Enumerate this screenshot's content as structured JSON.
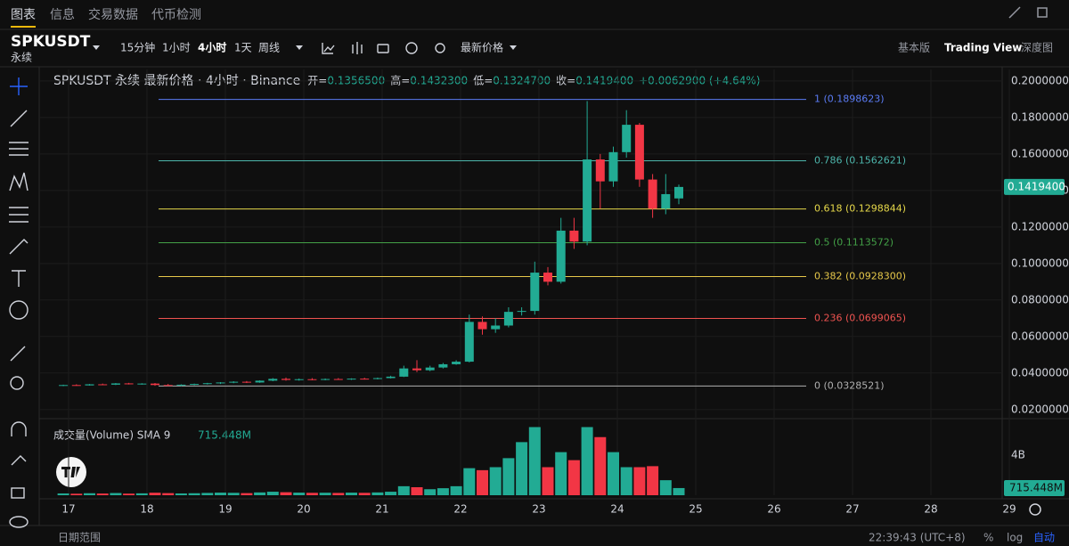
{
  "tabs": [
    "图表",
    "信息",
    "交易数据",
    "代币检测"
  ],
  "symbol": "SPKUSDT",
  "contract": "永续",
  "intervals": [
    "15分钟",
    "1小时",
    "4小时",
    "1天",
    "周线"
  ],
  "price_type": "最新价格",
  "views": [
    "基本版",
    "Trading View",
    "深度图"
  ],
  "legend": {
    "title": "SPKUSDT 永续 最新价格 · 4小时 · Binance",
    "items": [
      {
        "label": "开=",
        "value": "0.1356500"
      },
      {
        "label": "高=",
        "value": "0.1432300"
      },
      {
        "label": "低=",
        "value": "0.1324700"
      },
      {
        "label": "收=",
        "value": "0.1419400"
      }
    ],
    "change": "+0.0062900 (+4.64%)"
  },
  "volume_title": "成交量(Volume) SMA 9",
  "footer": {
    "range": "日期范围",
    "time": "22:39:43 (UTC+8)",
    "pct": "%",
    "log": "log",
    "auto": "自动"
  },
  "chart_data": {
    "type": "candlestick",
    "up_color": "#22ab94",
    "down_color": "#f23645",
    "candles": [
      [
        0.033,
        0.0336,
        0.0328,
        0.0334
      ],
      [
        0.0334,
        0.0338,
        0.033,
        0.0332
      ],
      [
        0.0332,
        0.034,
        0.0331,
        0.0338
      ],
      [
        0.0338,
        0.0342,
        0.0334,
        0.0336
      ],
      [
        0.0336,
        0.0345,
        0.0334,
        0.0343
      ],
      [
        0.0343,
        0.0346,
        0.0337,
        0.034
      ],
      [
        0.034,
        0.0344,
        0.0336,
        0.0342
      ],
      [
        0.0342,
        0.0345,
        0.033,
        0.0334
      ],
      [
        0.0334,
        0.034,
        0.0328,
        0.0331
      ],
      [
        0.0331,
        0.0338,
        0.0328,
        0.0336
      ],
      [
        0.0336,
        0.0342,
        0.0333,
        0.034
      ],
      [
        0.034,
        0.0346,
        0.0337,
        0.0344
      ],
      [
        0.0344,
        0.035,
        0.034,
        0.0348
      ],
      [
        0.0348,
        0.0355,
        0.0344,
        0.0352
      ],
      [
        0.0352,
        0.0356,
        0.0345,
        0.0348
      ],
      [
        0.0348,
        0.036,
        0.0346,
        0.0358
      ],
      [
        0.0358,
        0.0372,
        0.0355,
        0.0368
      ],
      [
        0.0368,
        0.0375,
        0.0358,
        0.0362
      ],
      [
        0.0362,
        0.037,
        0.0358,
        0.0366
      ],
      [
        0.0366,
        0.0372,
        0.036,
        0.0364
      ],
      [
        0.0364,
        0.037,
        0.036,
        0.0367
      ],
      [
        0.0367,
        0.0372,
        0.0362,
        0.0365
      ],
      [
        0.0365,
        0.0371,
        0.0362,
        0.0369
      ],
      [
        0.0369,
        0.0374,
        0.0364,
        0.0367
      ],
      [
        0.0367,
        0.0375,
        0.0365,
        0.0372
      ],
      [
        0.0372,
        0.0385,
        0.037,
        0.038
      ],
      [
        0.038,
        0.044,
        0.0378,
        0.0425
      ],
      [
        0.0425,
        0.047,
        0.0405,
        0.0415
      ],
      [
        0.0415,
        0.044,
        0.041,
        0.043
      ],
      [
        0.043,
        0.0455,
        0.0425,
        0.0448
      ],
      [
        0.0448,
        0.047,
        0.0445,
        0.0462
      ],
      [
        0.0462,
        0.072,
        0.0458,
        0.068
      ],
      [
        0.068,
        0.071,
        0.061,
        0.064
      ],
      [
        0.064,
        0.07,
        0.062,
        0.066
      ],
      [
        0.066,
        0.076,
        0.065,
        0.0735
      ],
      [
        0.0735,
        0.076,
        0.0715,
        0.074
      ],
      [
        0.074,
        0.101,
        0.072,
        0.095
      ],
      [
        0.095,
        0.098,
        0.088,
        0.09
      ],
      [
        0.09,
        0.125,
        0.089,
        0.118
      ],
      [
        0.118,
        0.125,
        0.108,
        0.112
      ],
      [
        0.112,
        0.189,
        0.11,
        0.157
      ],
      [
        0.157,
        0.16,
        0.13,
        0.145
      ],
      [
        0.145,
        0.164,
        0.142,
        0.161
      ],
      [
        0.161,
        0.184,
        0.158,
        0.176
      ],
      [
        0.176,
        0.177,
        0.142,
        0.146
      ],
      [
        0.146,
        0.149,
        0.125,
        0.13
      ],
      [
        0.13,
        0.149,
        0.127,
        0.138
      ],
      [
        0.13565,
        0.14323,
        0.13247,
        0.14194
      ]
    ],
    "volumes": [
      180,
      150,
      200,
      170,
      220,
      160,
      190,
      250,
      210,
      180,
      200,
      230,
      260,
      240,
      210,
      280,
      350,
      300,
      260,
      240,
      250,
      230,
      260,
      240,
      280,
      350,
      900,
      800,
      600,
      700,
      900,
      2700,
      2500,
      2800,
      3700,
      5300,
      6800,
      2800,
      4300,
      3500,
      6800,
      5800,
      4300,
      2800,
      2800,
      2900,
      1500,
      715.448
    ],
    "ylim": [
      0.015,
      0.2063
    ],
    "yticks": [
      {
        "value": 0.02,
        "label": "0.0200000"
      },
      {
        "value": 0.04,
        "label": "0.0400000"
      },
      {
        "value": 0.06,
        "label": "0.0600000"
      },
      {
        "value": 0.08,
        "label": "0.0800000"
      },
      {
        "value": 0.1,
        "label": "0.1000000"
      },
      {
        "value": 0.12,
        "label": "0.1200000"
      },
      {
        "value": 0.14,
        "label": "0.1400000"
      },
      {
        "value": 0.16,
        "label": "0.1600000"
      },
      {
        "value": 0.18,
        "label": "0.1800000"
      },
      {
        "value": 0.2,
        "label": "0.2000000"
      }
    ],
    "price_label": {
      "value": 0.14194,
      "label": "0.1419400"
    },
    "vlim": [
      0,
      7200
    ],
    "vticks": [
      {
        "value": 4000,
        "label": "4B"
      }
    ],
    "volume_label": {
      "value": 715.448,
      "label": "715.448M"
    },
    "xticks": [
      17,
      18,
      19,
      20,
      21,
      22,
      23,
      24,
      25,
      26,
      27,
      28,
      29
    ],
    "fib": [
      {
        "label": "1 (0.1898623)",
        "price": 0.1898623,
        "color": "#5b7cf5"
      },
      {
        "label": "0.786 (0.1562621)",
        "price": 0.1562621,
        "color": "#4db6ac"
      },
      {
        "label": "0.618 (0.1298844)",
        "price": 0.1298844,
        "color": "#e6d84a"
      },
      {
        "label": "0.5 (0.1113572)",
        "price": 0.1113572,
        "color": "#43a047"
      },
      {
        "label": "0.382 (0.0928300)",
        "price": 0.09283,
        "color": "#e6c84a"
      },
      {
        "label": "0.236 (0.0699065)",
        "price": 0.0699065,
        "color": "#ef5350"
      },
      {
        "label": "0 (0.0328521)",
        "price": 0.0328521,
        "color": "#b0b0b0"
      }
    ]
  }
}
